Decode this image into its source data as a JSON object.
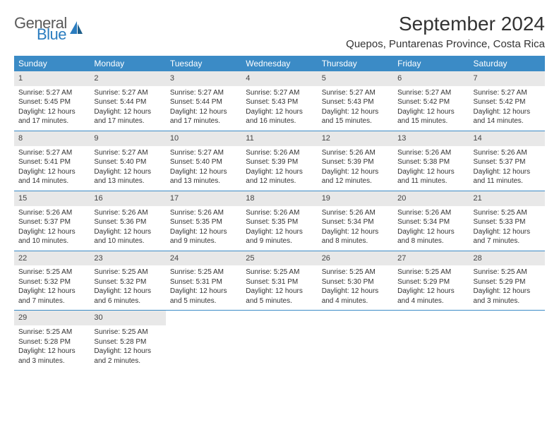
{
  "colors": {
    "header_bg": "#3b8bc6",
    "header_text": "#ffffff",
    "daynum_bg": "#e8e8e8",
    "week_border": "#3b8bc6",
    "body_text": "#333333",
    "logo_gray": "#5a5a5a",
    "logo_blue": "#2a7cbf",
    "page_bg": "#ffffff"
  },
  "typography": {
    "title_fontsize": 28,
    "location_fontsize": 15,
    "dayheader_fontsize": 12,
    "daynum_fontsize": 11,
    "body_fontsize": 10
  },
  "logo": {
    "line1": "General",
    "line2": "Blue"
  },
  "title": "September 2024",
  "location": "Quepos, Puntarenas Province, Costa Rica",
  "day_headers": [
    "Sunday",
    "Monday",
    "Tuesday",
    "Wednesday",
    "Thursday",
    "Friday",
    "Saturday"
  ],
  "weeks": [
    [
      {
        "n": "1",
        "sr": "Sunrise: 5:27 AM",
        "ss": "Sunset: 5:45 PM",
        "dl": "Daylight: 12 hours and 17 minutes."
      },
      {
        "n": "2",
        "sr": "Sunrise: 5:27 AM",
        "ss": "Sunset: 5:44 PM",
        "dl": "Daylight: 12 hours and 17 minutes."
      },
      {
        "n": "3",
        "sr": "Sunrise: 5:27 AM",
        "ss": "Sunset: 5:44 PM",
        "dl": "Daylight: 12 hours and 17 minutes."
      },
      {
        "n": "4",
        "sr": "Sunrise: 5:27 AM",
        "ss": "Sunset: 5:43 PM",
        "dl": "Daylight: 12 hours and 16 minutes."
      },
      {
        "n": "5",
        "sr": "Sunrise: 5:27 AM",
        "ss": "Sunset: 5:43 PM",
        "dl": "Daylight: 12 hours and 15 minutes."
      },
      {
        "n": "6",
        "sr": "Sunrise: 5:27 AM",
        "ss": "Sunset: 5:42 PM",
        "dl": "Daylight: 12 hours and 15 minutes."
      },
      {
        "n": "7",
        "sr": "Sunrise: 5:27 AM",
        "ss": "Sunset: 5:42 PM",
        "dl": "Daylight: 12 hours and 14 minutes."
      }
    ],
    [
      {
        "n": "8",
        "sr": "Sunrise: 5:27 AM",
        "ss": "Sunset: 5:41 PM",
        "dl": "Daylight: 12 hours and 14 minutes."
      },
      {
        "n": "9",
        "sr": "Sunrise: 5:27 AM",
        "ss": "Sunset: 5:40 PM",
        "dl": "Daylight: 12 hours and 13 minutes."
      },
      {
        "n": "10",
        "sr": "Sunrise: 5:27 AM",
        "ss": "Sunset: 5:40 PM",
        "dl": "Daylight: 12 hours and 13 minutes."
      },
      {
        "n": "11",
        "sr": "Sunrise: 5:26 AM",
        "ss": "Sunset: 5:39 PM",
        "dl": "Daylight: 12 hours and 12 minutes."
      },
      {
        "n": "12",
        "sr": "Sunrise: 5:26 AM",
        "ss": "Sunset: 5:39 PM",
        "dl": "Daylight: 12 hours and 12 minutes."
      },
      {
        "n": "13",
        "sr": "Sunrise: 5:26 AM",
        "ss": "Sunset: 5:38 PM",
        "dl": "Daylight: 12 hours and 11 minutes."
      },
      {
        "n": "14",
        "sr": "Sunrise: 5:26 AM",
        "ss": "Sunset: 5:37 PM",
        "dl": "Daylight: 12 hours and 11 minutes."
      }
    ],
    [
      {
        "n": "15",
        "sr": "Sunrise: 5:26 AM",
        "ss": "Sunset: 5:37 PM",
        "dl": "Daylight: 12 hours and 10 minutes."
      },
      {
        "n": "16",
        "sr": "Sunrise: 5:26 AM",
        "ss": "Sunset: 5:36 PM",
        "dl": "Daylight: 12 hours and 10 minutes."
      },
      {
        "n": "17",
        "sr": "Sunrise: 5:26 AM",
        "ss": "Sunset: 5:35 PM",
        "dl": "Daylight: 12 hours and 9 minutes."
      },
      {
        "n": "18",
        "sr": "Sunrise: 5:26 AM",
        "ss": "Sunset: 5:35 PM",
        "dl": "Daylight: 12 hours and 9 minutes."
      },
      {
        "n": "19",
        "sr": "Sunrise: 5:26 AM",
        "ss": "Sunset: 5:34 PM",
        "dl": "Daylight: 12 hours and 8 minutes."
      },
      {
        "n": "20",
        "sr": "Sunrise: 5:26 AM",
        "ss": "Sunset: 5:34 PM",
        "dl": "Daylight: 12 hours and 8 minutes."
      },
      {
        "n": "21",
        "sr": "Sunrise: 5:25 AM",
        "ss": "Sunset: 5:33 PM",
        "dl": "Daylight: 12 hours and 7 minutes."
      }
    ],
    [
      {
        "n": "22",
        "sr": "Sunrise: 5:25 AM",
        "ss": "Sunset: 5:32 PM",
        "dl": "Daylight: 12 hours and 7 minutes."
      },
      {
        "n": "23",
        "sr": "Sunrise: 5:25 AM",
        "ss": "Sunset: 5:32 PM",
        "dl": "Daylight: 12 hours and 6 minutes."
      },
      {
        "n": "24",
        "sr": "Sunrise: 5:25 AM",
        "ss": "Sunset: 5:31 PM",
        "dl": "Daylight: 12 hours and 5 minutes."
      },
      {
        "n": "25",
        "sr": "Sunrise: 5:25 AM",
        "ss": "Sunset: 5:31 PM",
        "dl": "Daylight: 12 hours and 5 minutes."
      },
      {
        "n": "26",
        "sr": "Sunrise: 5:25 AM",
        "ss": "Sunset: 5:30 PM",
        "dl": "Daylight: 12 hours and 4 minutes."
      },
      {
        "n": "27",
        "sr": "Sunrise: 5:25 AM",
        "ss": "Sunset: 5:29 PM",
        "dl": "Daylight: 12 hours and 4 minutes."
      },
      {
        "n": "28",
        "sr": "Sunrise: 5:25 AM",
        "ss": "Sunset: 5:29 PM",
        "dl": "Daylight: 12 hours and 3 minutes."
      }
    ],
    [
      {
        "n": "29",
        "sr": "Sunrise: 5:25 AM",
        "ss": "Sunset: 5:28 PM",
        "dl": "Daylight: 12 hours and 3 minutes."
      },
      {
        "n": "30",
        "sr": "Sunrise: 5:25 AM",
        "ss": "Sunset: 5:28 PM",
        "dl": "Daylight: 12 hours and 2 minutes."
      },
      null,
      null,
      null,
      null,
      null
    ]
  ]
}
